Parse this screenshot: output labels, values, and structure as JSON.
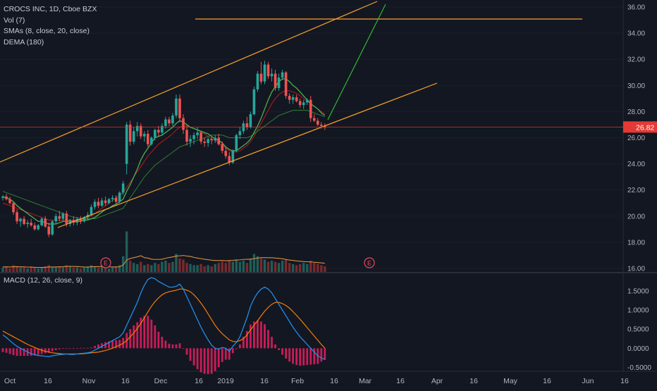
{
  "legend": {
    "symbol_line": "CROCS INC, 1D, Cboe BZX",
    "vol": "Vol (7)",
    "smas": "SMAs (8, close, 20, close)",
    "dema": "DEMA (180)",
    "macd": "MACD (12, 26, close, 9)"
  },
  "colors": {
    "background": "#131722",
    "up": "#26a69a",
    "down": "#ef5350",
    "channel": "#f7a12c",
    "projection": "#2eb82e",
    "sma_fast": "#4caf50",
    "sma_slow": "#2e7d32",
    "dema": "#b71c1c",
    "vol_ma": "#d9903d",
    "macd": "#2196f3",
    "signal": "#f57c00",
    "histogram": "#e91e63",
    "price_line": "#e53935"
  },
  "chart_data": [
    {
      "type": "candlestick",
      "title": "CROCS INC, 1D, Cboe BZX",
      "y_ticks": [
        "36.00",
        "34.00",
        "32.00",
        "30.00",
        "28.00",
        "26.00",
        "24.00",
        "22.00",
        "20.00",
        "18.00",
        "16.00"
      ],
      "ylim": [
        15.2,
        36.3
      ],
      "last_price": "26.82",
      "x_ticks": [
        "Oct",
        "16",
        "Nov",
        "16",
        "Dec",
        "16",
        "2019",
        "16",
        "Feb",
        "16",
        "Mar",
        "16",
        "Apr",
        "16",
        "May",
        "16",
        "Jun",
        "16"
      ],
      "earnings_markers": [
        "E",
        "E"
      ],
      "candles": [
        [
          21.4,
          21.6,
          21.2,
          21.5
        ],
        [
          21.5,
          21.7,
          21.2,
          21.3
        ],
        [
          21.3,
          21.5,
          20.9,
          21.0
        ],
        [
          21.0,
          21.1,
          20.1,
          20.3
        ],
        [
          20.3,
          20.5,
          19.4,
          19.6
        ],
        [
          19.6,
          19.9,
          19.2,
          19.8
        ],
        [
          19.8,
          20.0,
          19.3,
          19.4
        ],
        [
          19.4,
          19.7,
          19.1,
          19.5
        ],
        [
          19.5,
          19.8,
          19.2,
          19.3
        ],
        [
          19.3,
          19.5,
          18.9,
          19.0
        ],
        [
          19.0,
          19.4,
          18.9,
          19.3
        ],
        [
          19.3,
          19.9,
          19.2,
          19.8
        ],
        [
          19.8,
          20.0,
          19.1,
          19.2
        ],
        [
          19.2,
          19.5,
          18.4,
          18.6
        ],
        [
          18.6,
          19.7,
          18.5,
          19.6
        ],
        [
          19.6,
          20.2,
          19.4,
          20.0
        ],
        [
          20.0,
          20.4,
          19.6,
          19.8
        ],
        [
          19.8,
          20.3,
          19.6,
          20.2
        ],
        [
          20.2,
          20.4,
          19.2,
          19.4
        ],
        [
          19.4,
          19.8,
          19.2,
          19.7
        ],
        [
          19.7,
          20.0,
          19.3,
          19.5
        ],
        [
          19.5,
          19.9,
          19.3,
          19.8
        ],
        [
          19.8,
          20.0,
          19.4,
          19.6
        ],
        [
          19.6,
          20.0,
          19.5,
          19.9
        ],
        [
          19.9,
          20.3,
          19.7,
          20.1
        ],
        [
          20.1,
          20.9,
          20.0,
          20.7
        ],
        [
          20.7,
          21.3,
          20.5,
          21.1
        ],
        [
          21.1,
          21.4,
          20.6,
          20.8
        ],
        [
          20.8,
          21.4,
          20.7,
          21.2
        ],
        [
          21.2,
          21.5,
          20.8,
          21.0
        ],
        [
          21.0,
          21.4,
          20.9,
          21.3
        ],
        [
          21.3,
          21.6,
          21.1,
          21.4
        ],
        [
          21.4,
          21.6,
          20.9,
          21.1
        ],
        [
          21.1,
          21.9,
          21.0,
          21.8
        ],
        [
          21.8,
          22.7,
          21.6,
          22.5
        ],
        [
          24.0,
          27.2,
          23.2,
          27.0
        ],
        [
          27.0,
          27.3,
          25.4,
          25.7
        ],
        [
          25.7,
          26.8,
          25.5,
          26.5
        ],
        [
          26.5,
          27.2,
          26.1,
          26.9
        ],
        [
          26.9,
          27.1,
          25.9,
          26.1
        ],
        [
          26.1,
          26.5,
          25.7,
          26.3
        ],
        [
          26.3,
          26.6,
          25.3,
          25.5
        ],
        [
          25.5,
          26.1,
          25.4,
          26.0
        ],
        [
          26.0,
          26.7,
          25.8,
          26.6
        ],
        [
          26.6,
          26.9,
          26.1,
          26.4
        ],
        [
          26.4,
          27.1,
          26.2,
          26.9
        ],
        [
          26.9,
          27.6,
          26.7,
          27.4
        ],
        [
          27.4,
          27.6,
          26.9,
          27.1
        ],
        [
          27.1,
          27.9,
          26.9,
          27.7
        ],
        [
          27.7,
          29.3,
          27.5,
          29.0
        ],
        [
          29.0,
          29.3,
          27.2,
          27.5
        ],
        [
          27.5,
          27.8,
          26.3,
          26.6
        ],
        [
          26.6,
          26.9,
          25.4,
          25.7
        ],
        [
          25.7,
          26.2,
          25.3,
          25.9
        ],
        [
          25.9,
          26.4,
          25.5,
          26.2
        ],
        [
          26.2,
          26.8,
          25.9,
          26.4
        ],
        [
          26.4,
          26.5,
          25.5,
          25.7
        ],
        [
          25.7,
          26.0,
          25.3,
          25.6
        ],
        [
          25.6,
          26.0,
          25.3,
          25.9
        ],
        [
          25.9,
          26.1,
          25.5,
          25.8
        ],
        [
          25.8,
          26.2,
          25.6,
          26.0
        ],
        [
          26.0,
          26.3,
          25.4,
          25.5
        ],
        [
          25.5,
          25.7,
          24.8,
          25.0
        ],
        [
          25.0,
          25.3,
          24.4,
          24.6
        ],
        [
          24.6,
          24.9,
          23.9,
          24.1
        ],
        [
          24.1,
          25.1,
          24.0,
          25.0
        ],
        [
          25.0,
          26.3,
          24.9,
          26.2
        ],
        [
          26.2,
          26.8,
          25.9,
          26.5
        ],
        [
          26.5,
          27.3,
          26.3,
          27.1
        ],
        [
          27.1,
          27.6,
          26.6,
          26.8
        ],
        [
          26.8,
          28.0,
          26.7,
          27.8
        ],
        [
          27.8,
          29.9,
          27.7,
          29.7
        ],
        [
          29.7,
          31.1,
          29.5,
          30.9
        ],
        [
          30.9,
          31.8,
          30.1,
          30.3
        ],
        [
          30.3,
          31.9,
          30.1,
          31.6
        ],
        [
          31.6,
          31.8,
          30.5,
          30.7
        ],
        [
          30.7,
          31.3,
          30.3,
          30.9
        ],
        [
          30.9,
          31.2,
          29.6,
          29.8
        ],
        [
          29.8,
          30.9,
          29.6,
          30.6
        ],
        [
          30.6,
          31.2,
          30.4,
          31.0
        ],
        [
          31.0,
          31.1,
          29.0,
          29.2
        ],
        [
          29.2,
          29.4,
          28.6,
          28.9
        ],
        [
          28.9,
          29.3,
          28.6,
          29.1
        ],
        [
          29.1,
          29.3,
          28.7,
          28.8
        ],
        [
          28.8,
          29.0,
          28.3,
          28.5
        ],
        [
          28.5,
          28.9,
          28.2,
          28.7
        ],
        [
          28.7,
          29.0,
          28.5,
          28.9
        ],
        [
          28.9,
          29.2,
          27.2,
          27.5
        ],
        [
          27.5,
          27.8,
          27.2,
          27.3
        ],
        [
          27.3,
          27.5,
          26.9,
          27.0
        ],
        [
          27.0,
          27.2,
          26.7,
          26.9
        ],
        [
          26.9,
          27.1,
          26.6,
          26.8
        ]
      ],
      "volume": [
        4,
        5,
        3,
        6,
        5,
        4,
        4,
        3,
        5,
        4,
        3,
        4,
        5,
        6,
        4,
        4,
        5,
        4,
        6,
        5,
        4,
        4,
        3,
        4,
        5,
        6,
        5,
        4,
        5,
        4,
        3,
        4,
        5,
        6,
        14,
        36,
        10,
        8,
        7,
        9,
        6,
        7,
        6,
        8,
        7,
        9,
        10,
        8,
        9,
        16,
        12,
        11,
        8,
        7,
        6,
        6,
        7,
        5,
        6,
        5,
        7,
        8,
        9,
        8,
        10,
        9,
        11,
        9,
        10,
        8,
        12,
        16,
        14,
        12,
        11,
        9,
        10,
        9,
        8,
        10,
        11,
        8,
        7,
        6,
        7,
        8,
        7,
        10,
        8,
        7,
        6,
        5
      ],
      "vol_ma": [
        4.5,
        4.5,
        4.4,
        4.6,
        4.7,
        4.6,
        4.5,
        4.3,
        4.3,
        4.1,
        4.0,
        4.0,
        4.1,
        4.4,
        4.4,
        4.4,
        4.6,
        4.6,
        4.9,
        5.0,
        4.9,
        4.8,
        4.6,
        4.4,
        4.3,
        4.6,
        4.7,
        4.7,
        4.9,
        4.8,
        4.6,
        4.4,
        4.4,
        4.6,
        6.1,
        10.6,
        11.9,
        12.7,
        13.4,
        14.4,
        12.7,
        12.3,
        11.3,
        11.1,
        11.1,
        11.3,
        12.1,
        12.8,
        13.3,
        14.1,
        14.3,
        14.6,
        14.1,
        13.8,
        12.9,
        12.3,
        11.8,
        11.2,
        10.9,
        10.4,
        10.1,
        10.1,
        10.2,
        9.9,
        10.1,
        10.3,
        10.6,
        10.7,
        11.1,
        11.2,
        11.3,
        11.8,
        12.3,
        12.7,
        12.7,
        12.6,
        12.6,
        12.3,
        12.1,
        11.7,
        11.1,
        10.5,
        10.2,
        9.7,
        9.5,
        9.2,
        9.0,
        8.9,
        8.6,
        8.3,
        8.0,
        7.7
      ],
      "sma_fast": [
        21.5,
        21.4,
        21.3,
        21.1,
        20.8,
        20.6,
        20.4,
        20.2,
        20.0,
        19.8,
        19.6,
        19.6,
        19.5,
        19.4,
        19.4,
        19.4,
        19.5,
        19.6,
        19.6,
        19.6,
        19.6,
        19.6,
        19.6,
        19.7,
        19.7,
        19.8,
        19.9,
        20.1,
        20.3,
        20.5,
        20.6,
        20.8,
        20.9,
        21.1,
        21.3,
        21.9,
        22.4,
        23.0,
        23.6,
        24.3,
        24.8,
        25.2,
        25.6,
        26.0,
        26.1,
        26.2,
        26.4,
        26.6,
        26.8,
        27.1,
        27.3,
        27.2,
        27.0,
        26.8,
        26.7,
        26.6,
        26.5,
        26.4,
        26.3,
        26.1,
        25.9,
        25.8,
        25.6,
        25.3,
        25.1,
        25.0,
        25.0,
        25.2,
        25.4,
        25.6,
        25.9,
        26.4,
        26.9,
        27.5,
        28.2,
        28.9,
        29.5,
        29.9,
        30.3,
        30.5,
        30.5,
        30.3,
        30.0,
        29.8,
        29.5,
        29.2,
        28.9,
        28.6,
        28.4,
        28.2,
        27.9,
        27.7
      ],
      "sma_slow": [
        21.9,
        21.8,
        21.7,
        21.6,
        21.5,
        21.4,
        21.3,
        21.2,
        21.1,
        21.0,
        20.9,
        20.8,
        20.7,
        20.6,
        20.5,
        20.4,
        20.3,
        20.2,
        20.1,
        20.0,
        19.9,
        19.9,
        19.8,
        19.8,
        19.8,
        19.8,
        19.8,
        19.9,
        20.0,
        20.1,
        20.2,
        20.3,
        20.4,
        20.5,
        20.6,
        21.0,
        21.4,
        21.8,
        22.2,
        22.6,
        23.0,
        23.3,
        23.6,
        23.9,
        24.1,
        24.3,
        24.5,
        24.7,
        24.9,
        25.1,
        25.3,
        25.4,
        25.5,
        25.6,
        25.7,
        25.8,
        25.9,
        26.0,
        26.1,
        26.2,
        26.2,
        26.2,
        26.2,
        26.1,
        26.0,
        26.0,
        26.0,
        26.0,
        26.0,
        26.0,
        26.1,
        26.3,
        26.5,
        26.7,
        26.9,
        27.1,
        27.3,
        27.5,
        27.7,
        27.8,
        27.9,
        28.0,
        28.1,
        28.1,
        28.1,
        28.1,
        28.1,
        28.0,
        27.9,
        27.8,
        27.7,
        27.6
      ],
      "dema": [
        21.0,
        20.9,
        20.8,
        20.7,
        20.6,
        20.5,
        20.4,
        20.3,
        20.2,
        20.1,
        20.0,
        19.9,
        19.8,
        19.7,
        19.7,
        19.7,
        19.7,
        19.7,
        19.7,
        19.7,
        19.7,
        19.7,
        19.7,
        19.8,
        19.9,
        20.0,
        20.2,
        20.4,
        20.6,
        20.8,
        21.0,
        21.2,
        21.4,
        21.6,
        21.8,
        22.2,
        22.6,
        23.0,
        23.4,
        23.8,
        24.2,
        24.6,
        24.9,
        25.2,
        25.5,
        25.7,
        25.9,
        26.1,
        26.3,
        26.6,
        26.8,
        26.9,
        26.9,
        26.8,
        26.7,
        26.6,
        26.4,
        26.3,
        26.1,
        25.9,
        25.8,
        25.6,
        25.4,
        25.2,
        25.0,
        24.9,
        24.9,
        25.0,
        25.2,
        25.4,
        25.7,
        26.1,
        26.6,
        27.1,
        27.6,
        28.1,
        28.6,
        29.0,
        29.3,
        29.5,
        29.6,
        29.6,
        29.5,
        29.4,
        29.2,
        29.0,
        28.8,
        28.6,
        28.4,
        28.2,
        28.0,
        27.8
      ]
    },
    {
      "type": "line",
      "title": "MACD (12, 26, close, 9)",
      "y_ticks": [
        "1.5000",
        "1.0000",
        "0.5000",
        "0.0000",
        "-0.5000"
      ],
      "ylim": [
        -0.6,
        1.95
      ],
      "macd": [
        0.35,
        0.28,
        0.2,
        0.12,
        0.05,
        0.0,
        -0.05,
        -0.1,
        -0.14,
        -0.17,
        -0.19,
        -0.2,
        -0.21,
        -0.22,
        -0.2,
        -0.18,
        -0.17,
        -0.16,
        -0.15,
        -0.16,
        -0.16,
        -0.15,
        -0.14,
        -0.13,
        -0.12,
        -0.1,
        -0.05,
        0.0,
        0.05,
        0.1,
        0.15,
        0.2,
        0.25,
        0.3,
        0.4,
        0.6,
        0.8,
        1.0,
        1.2,
        1.45,
        1.65,
        1.8,
        1.85,
        1.82,
        1.75,
        1.7,
        1.65,
        1.6,
        1.6,
        1.62,
        1.68,
        1.55,
        1.35,
        1.15,
        0.95,
        0.75,
        0.55,
        0.38,
        0.22,
        0.08,
        0.0,
        -0.02,
        0.02,
        0.0,
        -0.08,
        0.05,
        0.15,
        0.3,
        0.55,
        0.8,
        1.1,
        1.3,
        1.45,
        1.55,
        1.6,
        1.55,
        1.45,
        1.3,
        1.15,
        1.0,
        0.85,
        0.7,
        0.55,
        0.42,
        0.3,
        0.2,
        0.1,
        0.0,
        -0.1,
        -0.2,
        -0.25,
        -0.3
      ],
      "signal": [
        0.45,
        0.4,
        0.35,
        0.3,
        0.25,
        0.2,
        0.15,
        0.1,
        0.06,
        0.02,
        -0.02,
        -0.05,
        -0.08,
        -0.1,
        -0.12,
        -0.13,
        -0.14,
        -0.15,
        -0.15,
        -0.15,
        -0.15,
        -0.15,
        -0.15,
        -0.14,
        -0.13,
        -0.12,
        -0.11,
        -0.1,
        -0.08,
        -0.06,
        -0.03,
        0.0,
        0.04,
        0.08,
        0.13,
        0.2,
        0.3,
        0.4,
        0.52,
        0.65,
        0.8,
        0.95,
        1.1,
        1.22,
        1.32,
        1.4,
        1.45,
        1.48,
        1.5,
        1.52,
        1.55,
        1.55,
        1.52,
        1.48,
        1.4,
        1.3,
        1.18,
        1.05,
        0.9,
        0.75,
        0.6,
        0.48,
        0.38,
        0.3,
        0.22,
        0.18,
        0.17,
        0.2,
        0.25,
        0.35,
        0.48,
        0.6,
        0.72,
        0.85,
        0.97,
        1.07,
        1.15,
        1.2,
        1.2,
        1.17,
        1.12,
        1.05,
        0.96,
        0.86,
        0.76,
        0.65,
        0.54,
        0.43,
        0.32,
        0.21,
        0.1,
        0.0
      ]
    }
  ]
}
